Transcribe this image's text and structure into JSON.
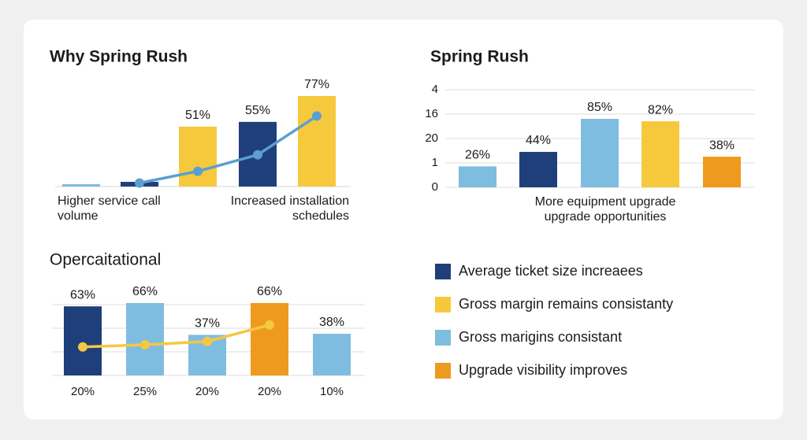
{
  "chart_data": [
    {
      "type": "bar",
      "title": "Why Spring Rush",
      "categories": [
        "Higher service call volume",
        null,
        null,
        null,
        "Increased installation schedules"
      ],
      "series": [
        {
          "type": "bar",
          "colors": [
            "#7fbde0",
            "#1f3f7a",
            "#f6c93d",
            "#1f3f7a",
            "#f6c93d"
          ],
          "values": [
            2,
            4,
            51,
            55,
            77
          ],
          "value_labels": [
            null,
            null,
            "51%",
            "55%",
            "77%"
          ]
        },
        {
          "type": "line",
          "color": "#5a9fd0",
          "values": [
            null,
            3,
            13,
            27,
            60
          ]
        }
      ]
    },
    {
      "type": "bar",
      "title": "Spring Rush",
      "y_axis_labels": [
        "0",
        "1",
        "20",
        "16",
        "4"
      ],
      "x_label": "More equipment upgrade upgrade opportunities",
      "grid": true,
      "series": [
        {
          "type": "bar",
          "colors": [
            "#7fbde0",
            "#1f3f7a",
            "#7fbde0",
            "#f6c93d",
            "#ee9a1e"
          ],
          "values": [
            26,
            44,
            85,
            82,
            38
          ],
          "value_labels": [
            "26%",
            "44%",
            "85%",
            "82%",
            "38%"
          ]
        }
      ]
    },
    {
      "type": "bar",
      "title": "Opercaitational",
      "categories": [
        "20%",
        "25%",
        "20%",
        "20%",
        "10%"
      ],
      "grid": true,
      "series": [
        {
          "type": "bar",
          "colors": [
            "#1f3f7a",
            "#7fbde0",
            "#7fbde0",
            "#ee9a1e",
            "#7fbde0"
          ],
          "values": [
            63,
            66,
            37,
            66,
            38
          ],
          "value_labels": [
            "63%",
            "66%",
            "37%",
            "66%",
            "38%"
          ]
        },
        {
          "type": "line",
          "color": "#f5c842",
          "values": [
            26,
            28,
            31,
            46,
            null
          ]
        }
      ]
    }
  ],
  "legend": [
    {
      "name": "Average ticket size increaees",
      "color": "#1f3f7a"
    },
    {
      "name": "Gross margin remains consistanty",
      "color": "#f6c93d"
    },
    {
      "name": "Gross marigins consistant",
      "color": "#7fbde0"
    },
    {
      "name": "Upgrade visibility improves",
      "color": "#ee9a1e"
    }
  ]
}
